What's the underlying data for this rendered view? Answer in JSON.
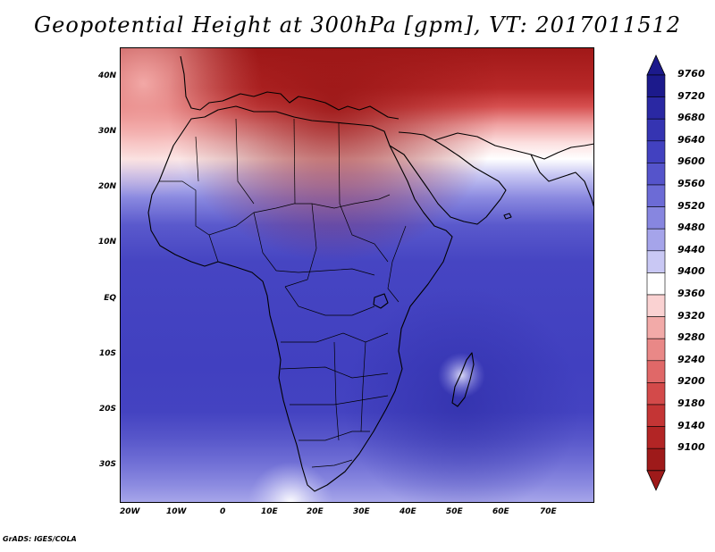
{
  "title": "Geopotential Height at 300hPa [gpm], VT: 2017011512",
  "credit": "GrADS: IGES/COLA",
  "x_ticks": [
    "20W",
    "10W",
    "0",
    "10E",
    "20E",
    "30E",
    "40E",
    "50E",
    "60E",
    "70E"
  ],
  "y_ticks": [
    "40N",
    "30N",
    "20N",
    "10N",
    "EQ",
    "10S",
    "20S",
    "30S"
  ],
  "colorbar": {
    "levels": [
      "9760",
      "9720",
      "9680",
      "9640",
      "9600",
      "9560",
      "9520",
      "9480",
      "9440",
      "9400",
      "9360",
      "9320",
      "9280",
      "9240",
      "9200",
      "9180",
      "9140",
      "9100"
    ],
    "colors": [
      "#1c1a8c",
      "#2a28a3",
      "#3534b2",
      "#4241c0",
      "#5554cb",
      "#6c6bd6",
      "#8786e0",
      "#a5a4ea",
      "#c9c8f4",
      "#ffffff",
      "#fad2d2",
      "#f2aaa8",
      "#e98887",
      "#e06868",
      "#d34a4a",
      "#c43535",
      "#b22525",
      "#9e1a1a"
    ]
  },
  "map": {
    "lon_range": [
      -23,
      80
    ],
    "lat_range": [
      -37,
      45
    ]
  }
}
